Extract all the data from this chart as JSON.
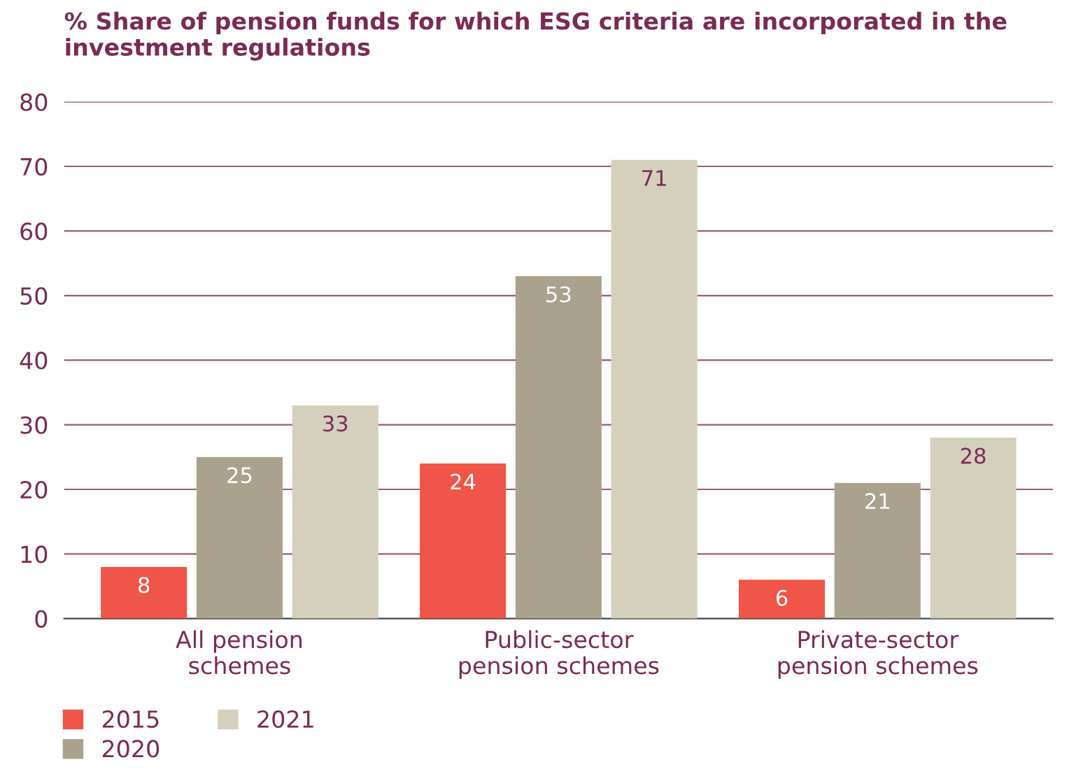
{
  "chart_data": {
    "type": "bar",
    "title": "% Share of pension funds for which ESG criteria are incorporated in the investment regulations",
    "categories": [
      "All pension\nschemes",
      "Public-sector\npension schemes",
      "Private-sector\npension schemes"
    ],
    "series": [
      {
        "name": "2015",
        "color": "#ef5548",
        "values": [
          8,
          24,
          6
        ]
      },
      {
        "name": "2020",
        "color": "#aba28d",
        "values": [
          25,
          53,
          21
        ]
      },
      {
        "name": "2021",
        "color": "#d4d0bc",
        "values": [
          33,
          71,
          28
        ]
      }
    ],
    "ylim": [
      0,
      80
    ],
    "yticks": [
      0,
      10,
      20,
      30,
      40,
      50,
      60,
      70,
      80
    ],
    "grid": "y",
    "legend": "bottom left",
    "data_labels": true
  }
}
